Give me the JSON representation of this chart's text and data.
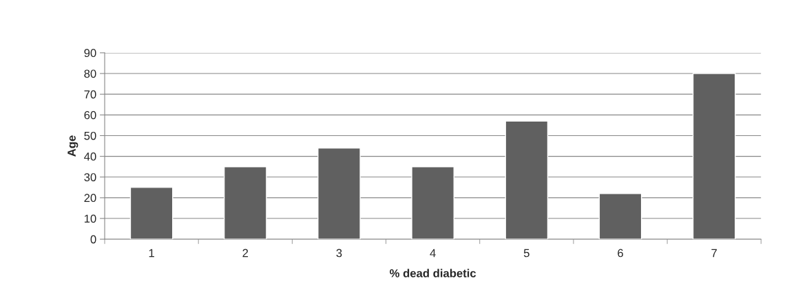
{
  "chart_data": {
    "type": "bar",
    "xlabel": "% dead diabetic",
    "ylabel": "Age",
    "categories": [
      "1",
      "2",
      "3",
      "4",
      "5",
      "6",
      "7"
    ],
    "values": [
      25,
      35,
      44,
      35,
      57,
      22,
      80
    ],
    "color": "#606060",
    "ylim": [
      0,
      90
    ],
    "yticks": [
      0,
      10,
      20,
      30,
      40,
      50,
      60,
      70,
      80,
      90
    ],
    "grid": "y",
    "legend": false
  }
}
